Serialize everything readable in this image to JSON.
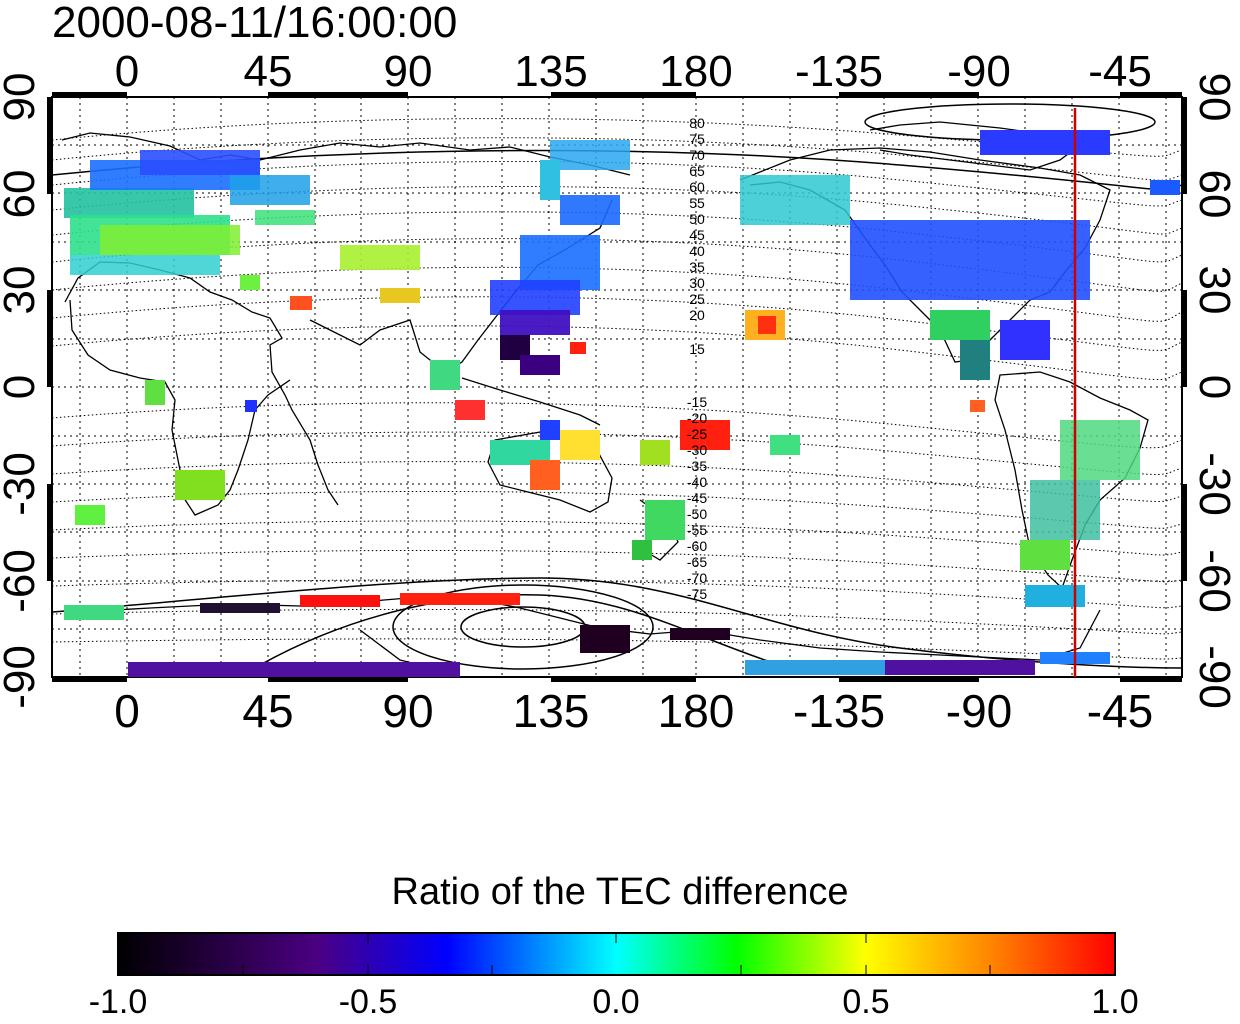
{
  "title": "2000-08-11/16:00:00",
  "map": {
    "lon_tick_labels": [
      "0",
      "45",
      "90",
      "135",
      "180",
      "-135",
      "-90",
      "-45"
    ],
    "lat_tick_labels": [
      "90",
      "60",
      "30",
      "0",
      "-30",
      "-60",
      "-90"
    ],
    "contour_labels_north": [
      "80",
      "75",
      "70",
      "65",
      "60",
      "55",
      "50",
      "45",
      "40",
      "35",
      "30",
      "25",
      "20",
      "15"
    ],
    "contour_labels_south": [
      "-15",
      "-20",
      "-25",
      "-30",
      "-35",
      "-40",
      "-45",
      "-50",
      "-55",
      "-60",
      "-65",
      "-70",
      "-75"
    ],
    "meridian_line_color": "#cc0000",
    "grid": true
  },
  "colorbar": {
    "title": "Ratio of the TEC difference",
    "tick_labels": [
      "-1.0",
      "-0.5",
      "0.0",
      "0.5",
      "1.0"
    ],
    "range": [
      -1.0,
      1.0
    ],
    "colormap": [
      "#000000",
      "#4b0082",
      "#0000ff",
      "#00ffff",
      "#00ff00",
      "#ffff00",
      "#ff0000"
    ]
  }
}
